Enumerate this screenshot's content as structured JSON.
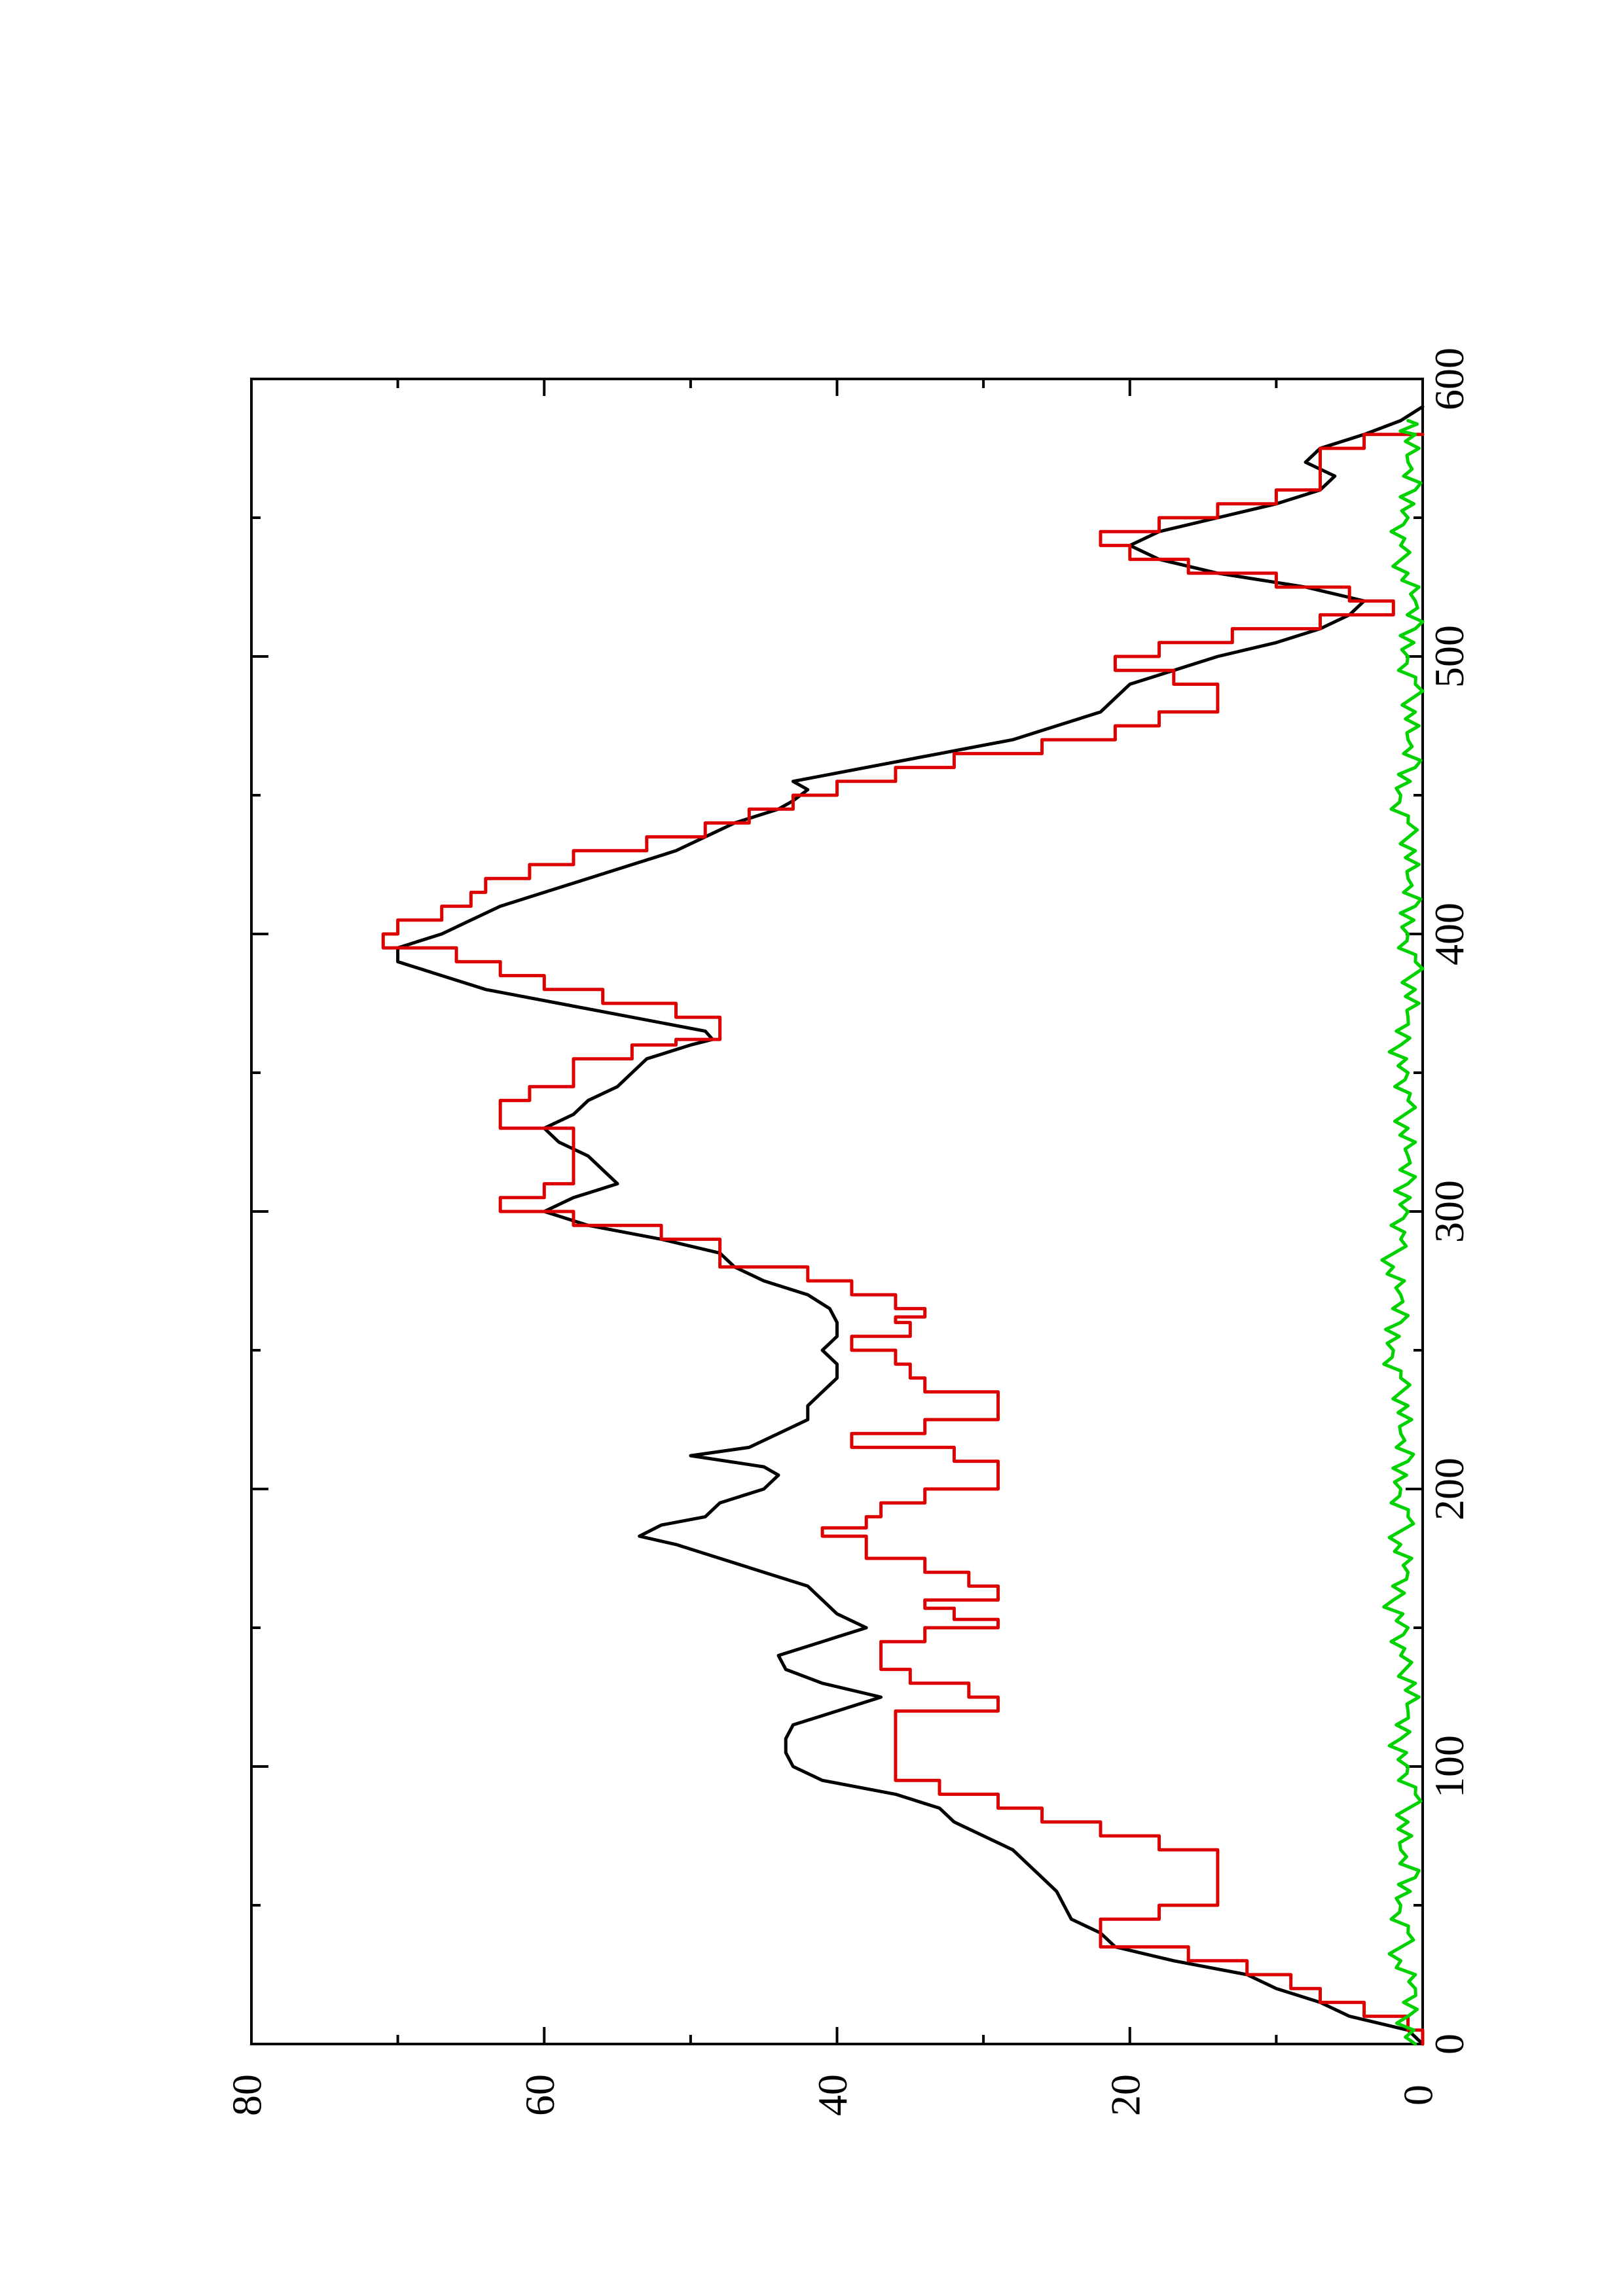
{
  "chart_data": {
    "type": "line",
    "orientation": "rotated 90 degrees counter-clockwise",
    "title": "",
    "xlabel": "",
    "ylabel": "",
    "xlim": [
      0,
      600
    ],
    "ylim": [
      0,
      80
    ],
    "x_ticks": [
      "0",
      "100",
      "200",
      "300",
      "400",
      "500",
      "600"
    ],
    "y_ticks": [
      "0",
      "20",
      "40",
      "60",
      "80"
    ],
    "x_minor_ticks": [
      50,
      150,
      250,
      350,
      450,
      550
    ],
    "y_minor_ticks": [
      10,
      30,
      50,
      70
    ],
    "grid": false,
    "legend": "none",
    "series": [
      {
        "color": "#000000",
        "style": "smooth",
        "points": [
          [
            0,
            0
          ],
          [
            5,
            1
          ],
          [
            10,
            5
          ],
          [
            15,
            7
          ],
          [
            20,
            10
          ],
          [
            25,
            12
          ],
          [
            30,
            17
          ],
          [
            35,
            21
          ],
          [
            40,
            22
          ],
          [
            45,
            24
          ],
          [
            50,
            24.5
          ],
          [
            55,
            25
          ],
          [
            60,
            26
          ],
          [
            65,
            27
          ],
          [
            70,
            28
          ],
          [
            75,
            30
          ],
          [
            80,
            32
          ],
          [
            85,
            33
          ],
          [
            90,
            36
          ],
          [
            95,
            41
          ],
          [
            100,
            43
          ],
          [
            105,
            43.5
          ],
          [
            110,
            43.5
          ],
          [
            115,
            43
          ],
          [
            120,
            40
          ],
          [
            125,
            37
          ],
          [
            130,
            41
          ],
          [
            135,
            43.5
          ],
          [
            140,
            44
          ],
          [
            145,
            41
          ],
          [
            150,
            38
          ],
          [
            155,
            40
          ],
          [
            160,
            41
          ],
          [
            165,
            42
          ],
          [
            170,
            45
          ],
          [
            175,
            48
          ],
          [
            180,
            51
          ],
          [
            183,
            53.5
          ],
          [
            187,
            52
          ],
          [
            190,
            49
          ],
          [
            195,
            48
          ],
          [
            200,
            45
          ],
          [
            205,
            44
          ],
          [
            208,
            45
          ],
          [
            212,
            50
          ],
          [
            215,
            46
          ],
          [
            220,
            44
          ],
          [
            225,
            42
          ],
          [
            230,
            42
          ],
          [
            235,
            41
          ],
          [
            240,
            40
          ],
          [
            245,
            40
          ],
          [
            250,
            41
          ],
          [
            255,
            40
          ],
          [
            260,
            40
          ],
          [
            265,
            40.5
          ],
          [
            270,
            42
          ],
          [
            275,
            45
          ],
          [
            280,
            47
          ],
          [
            285,
            48
          ],
          [
            290,
            52
          ],
          [
            295,
            57
          ],
          [
            300,
            60
          ],
          [
            305,
            58
          ],
          [
            310,
            55
          ],
          [
            315,
            56
          ],
          [
            320,
            57
          ],
          [
            325,
            59
          ],
          [
            330,
            60
          ],
          [
            335,
            58
          ],
          [
            340,
            57
          ],
          [
            345,
            55
          ],
          [
            350,
            54
          ],
          [
            355,
            53
          ],
          [
            360,
            50
          ],
          [
            362,
            48.5
          ],
          [
            365,
            49
          ],
          [
            370,
            54
          ],
          [
            375,
            59
          ],
          [
            380,
            64
          ],
          [
            385,
            67
          ],
          [
            390,
            70
          ],
          [
            395,
            70
          ],
          [
            400,
            67
          ],
          [
            405,
            65
          ],
          [
            410,
            63
          ],
          [
            415,
            60
          ],
          [
            420,
            57
          ],
          [
            425,
            54
          ],
          [
            430,
            51
          ],
          [
            435,
            49
          ],
          [
            440,
            47
          ],
          [
            445,
            44
          ],
          [
            448,
            43
          ],
          [
            452,
            42
          ],
          [
            455,
            43
          ],
          [
            460,
            38
          ],
          [
            465,
            33
          ],
          [
            470,
            28
          ],
          [
            475,
            25
          ],
          [
            480,
            22
          ],
          [
            485,
            21
          ],
          [
            490,
            20
          ],
          [
            495,
            17
          ],
          [
            500,
            14
          ],
          [
            505,
            10
          ],
          [
            510,
            7
          ],
          [
            515,
            5
          ],
          [
            520,
            4
          ],
          [
            525,
            8
          ],
          [
            530,
            14
          ],
          [
            535,
            18
          ],
          [
            540,
            20
          ],
          [
            545,
            18
          ],
          [
            550,
            14
          ],
          [
            555,
            10
          ],
          [
            560,
            7
          ],
          [
            565,
            6
          ],
          [
            570,
            8
          ],
          [
            575,
            7
          ],
          [
            580,
            4
          ],
          [
            585,
            1.5
          ],
          [
            590,
            0
          ]
        ]
      },
      {
        "color": "#dd0000",
        "style": "stepped",
        "points": [
          [
            0,
            0
          ],
          [
            5,
            1
          ],
          [
            10,
            4
          ],
          [
            15,
            7
          ],
          [
            20,
            9
          ],
          [
            25,
            12
          ],
          [
            30,
            16
          ],
          [
            35,
            22
          ],
          [
            40,
            22
          ],
          [
            45,
            18
          ],
          [
            50,
            14
          ],
          [
            55,
            14
          ],
          [
            60,
            14
          ],
          [
            65,
            14
          ],
          [
            70,
            18
          ],
          [
            75,
            22
          ],
          [
            80,
            26
          ],
          [
            85,
            29
          ],
          [
            90,
            33
          ],
          [
            95,
            36
          ],
          [
            100,
            36
          ],
          [
            110,
            36
          ],
          [
            120,
            29
          ],
          [
            125,
            31
          ],
          [
            130,
            35
          ],
          [
            135,
            37
          ],
          [
            140,
            37
          ],
          [
            145,
            34
          ],
          [
            150,
            29
          ],
          [
            153,
            32
          ],
          [
            157,
            34
          ],
          [
            160,
            29
          ],
          [
            165,
            31
          ],
          [
            170,
            34
          ],
          [
            175,
            38
          ],
          [
            180,
            38
          ],
          [
            183,
            41
          ],
          [
            186,
            38
          ],
          [
            190,
            37
          ],
          [
            195,
            34
          ],
          [
            200,
            29
          ],
          [
            205,
            29
          ],
          [
            208,
            29
          ],
          [
            210,
            32
          ],
          [
            215,
            39
          ],
          [
            220,
            34
          ],
          [
            225,
            29
          ],
          [
            230,
            29
          ],
          [
            235,
            34
          ],
          [
            240,
            35
          ],
          [
            245,
            36
          ],
          [
            250,
            39
          ],
          [
            255,
            35
          ],
          [
            260,
            36
          ],
          [
            262,
            34
          ],
          [
            265,
            36
          ],
          [
            270,
            39
          ],
          [
            275,
            42
          ],
          [
            280,
            48
          ],
          [
            285,
            48
          ],
          [
            290,
            52
          ],
          [
            295,
            58
          ],
          [
            300,
            63
          ],
          [
            305,
            60
          ],
          [
            310,
            58
          ],
          [
            315,
            58
          ],
          [
            320,
            58
          ],
          [
            325,
            58
          ],
          [
            330,
            63
          ],
          [
            335,
            63
          ],
          [
            340,
            61
          ],
          [
            345,
            58
          ],
          [
            350,
            58
          ],
          [
            355,
            54
          ],
          [
            360,
            51
          ],
          [
            362,
            48
          ],
          [
            365,
            48
          ],
          [
            370,
            51
          ],
          [
            375,
            56
          ],
          [
            380,
            60
          ],
          [
            385,
            63
          ],
          [
            390,
            66
          ],
          [
            395,
            71
          ],
          [
            400,
            70
          ],
          [
            405,
            67
          ],
          [
            410,
            65
          ],
          [
            415,
            64
          ],
          [
            420,
            61
          ],
          [
            425,
            58
          ],
          [
            430,
            53
          ],
          [
            435,
            49
          ],
          [
            440,
            46
          ],
          [
            445,
            43
          ],
          [
            450,
            40
          ],
          [
            455,
            36
          ],
          [
            460,
            32
          ],
          [
            465,
            26
          ],
          [
            470,
            21
          ],
          [
            475,
            18
          ],
          [
            480,
            14
          ],
          [
            485,
            14
          ],
          [
            490,
            17
          ],
          [
            495,
            21
          ],
          [
            500,
            18
          ],
          [
            505,
            13
          ],
          [
            510,
            7
          ],
          [
            515,
            2
          ],
          [
            520,
            5
          ],
          [
            525,
            10
          ],
          [
            530,
            16
          ],
          [
            535,
            20
          ],
          [
            540,
            22
          ],
          [
            545,
            18
          ],
          [
            550,
            14
          ],
          [
            555,
            10
          ],
          [
            560,
            7
          ],
          [
            565,
            7
          ],
          [
            570,
            7
          ],
          [
            575,
            4
          ],
          [
            580,
            0
          ]
        ]
      },
      {
        "color": "#00d200",
        "style": "noisy",
        "points": [
          [
            0,
            0.5
          ],
          [
            10,
            1
          ],
          [
            20,
            0.5
          ],
          [
            30,
            1.5
          ],
          [
            40,
            1
          ],
          [
            50,
            1.5
          ],
          [
            60,
            0.5
          ],
          [
            70,
            1.5
          ],
          [
            80,
            1
          ],
          [
            90,
            0.5
          ],
          [
            100,
            1
          ],
          [
            110,
            1.5
          ],
          [
            120,
            1
          ],
          [
            130,
            0.5
          ],
          [
            140,
            1.5
          ],
          [
            150,
            1
          ],
          [
            160,
            2
          ],
          [
            170,
            1
          ],
          [
            180,
            1.5
          ],
          [
            190,
            1
          ],
          [
            200,
            1.5
          ],
          [
            210,
            1
          ],
          [
            220,
            1.5
          ],
          [
            230,
            1
          ],
          [
            240,
            1.5
          ],
          [
            250,
            2
          ],
          [
            260,
            1.5
          ],
          [
            270,
            1.5
          ],
          [
            280,
            2
          ],
          [
            290,
            1.5
          ],
          [
            300,
            1
          ],
          [
            310,
            1
          ],
          [
            320,
            1
          ],
          [
            330,
            1
          ],
          [
            340,
            1
          ],
          [
            350,
            1
          ],
          [
            360,
            1.5
          ],
          [
            370,
            1
          ],
          [
            380,
            0.5
          ],
          [
            390,
            0.5
          ],
          [
            400,
            1
          ],
          [
            410,
            0.5
          ],
          [
            420,
            1
          ],
          [
            430,
            0.5
          ],
          [
            440,
            1
          ],
          [
            450,
            1.5
          ],
          [
            460,
            0.5
          ],
          [
            470,
            1
          ],
          [
            480,
            0.5
          ],
          [
            490,
            0.5
          ],
          [
            500,
            1
          ],
          [
            510,
            0.5
          ],
          [
            520,
            0.5
          ],
          [
            530,
            1
          ],
          [
            540,
            1.5
          ],
          [
            550,
            1
          ],
          [
            560,
            0.5
          ],
          [
            570,
            1
          ],
          [
            580,
            0.5
          ],
          [
            585,
            1
          ]
        ]
      }
    ]
  }
}
